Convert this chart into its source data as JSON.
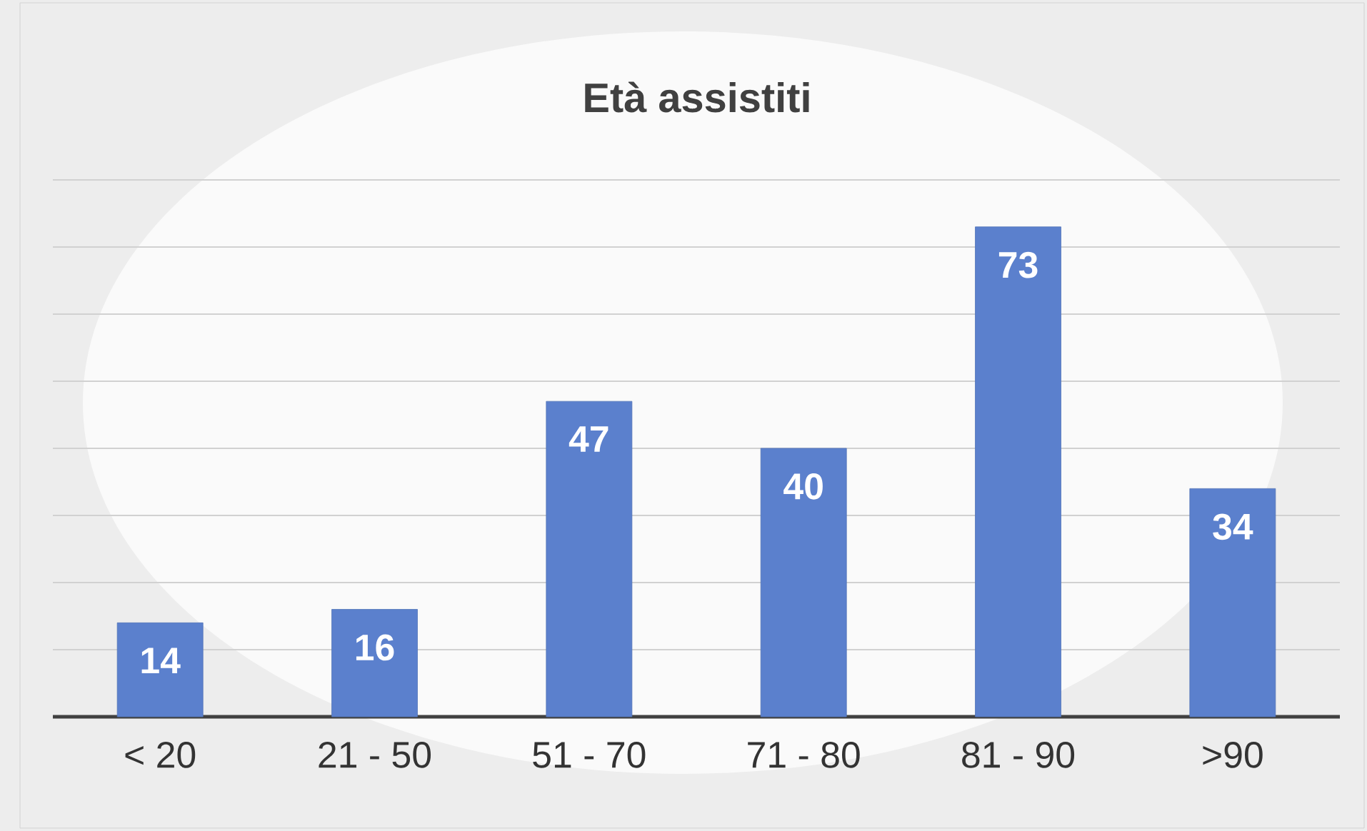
{
  "chart_data": {
    "type": "bar",
    "title": "Età assistiti",
    "categories": [
      "< 20",
      "21 - 50",
      "51 - 70",
      "71 - 80",
      "81 - 90",
      ">90"
    ],
    "values": [
      14,
      16,
      47,
      40,
      73,
      34
    ],
    "color": "#5b80cd",
    "ylim": [
      0,
      80
    ],
    "tick_labels": "x",
    "grid": "y",
    "data_labels": true
  }
}
